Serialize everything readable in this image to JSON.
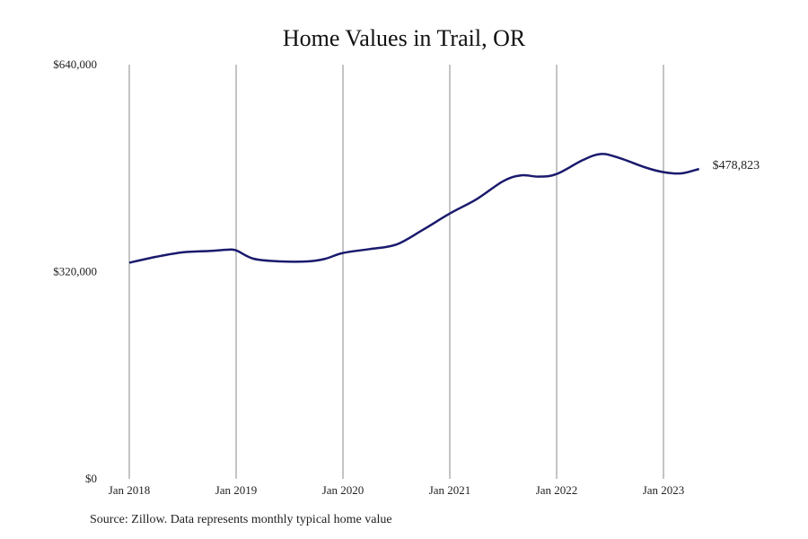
{
  "title": "Home Values in Trail, OR",
  "source_note": "Source: Zillow. Data represents monthly typical home value",
  "colors": {
    "line": "#1a1a6e",
    "grid": "#888888"
  },
  "chart_data": {
    "type": "line",
    "title": "Home Values in Trail, OR",
    "xlabel": "",
    "ylabel": "",
    "ylim": [
      0,
      640000
    ],
    "y_ticks": [
      {
        "value": 0,
        "label": "$0"
      },
      {
        "value": 320000,
        "label": "$320,000"
      },
      {
        "value": 640000,
        "label": "$640,000"
      }
    ],
    "x_ticks": [
      "Jan 2018",
      "Jan 2019",
      "Jan 2020",
      "Jan 2021",
      "Jan 2022",
      "Jan 2023"
    ],
    "vertical_grid": true,
    "end_label": "$478,823",
    "series": [
      {
        "x": [
          "2018-01",
          "2018-04",
          "2018-07",
          "2018-10",
          "2018-12",
          "2019-01",
          "2019-03",
          "2019-06",
          "2019-09",
          "2019-11",
          "2020-01",
          "2020-04",
          "2020-07",
          "2020-10",
          "2021-01",
          "2021-04",
          "2021-07",
          "2021-09",
          "2021-11",
          "2022-01",
          "2022-04",
          "2022-06",
          "2022-08",
          "2022-11",
          "2023-01",
          "2023-03",
          "2023-05"
        ],
        "values": [
          334000,
          343000,
          350000,
          352000,
          354000,
          353000,
          340000,
          336000,
          336000,
          340000,
          349000,
          355000,
          362000,
          385000,
          410000,
          432000,
          460000,
          469000,
          467000,
          471000,
          493000,
          502000,
          496000,
          481000,
          474000,
          472000,
          478823
        ]
      }
    ]
  }
}
